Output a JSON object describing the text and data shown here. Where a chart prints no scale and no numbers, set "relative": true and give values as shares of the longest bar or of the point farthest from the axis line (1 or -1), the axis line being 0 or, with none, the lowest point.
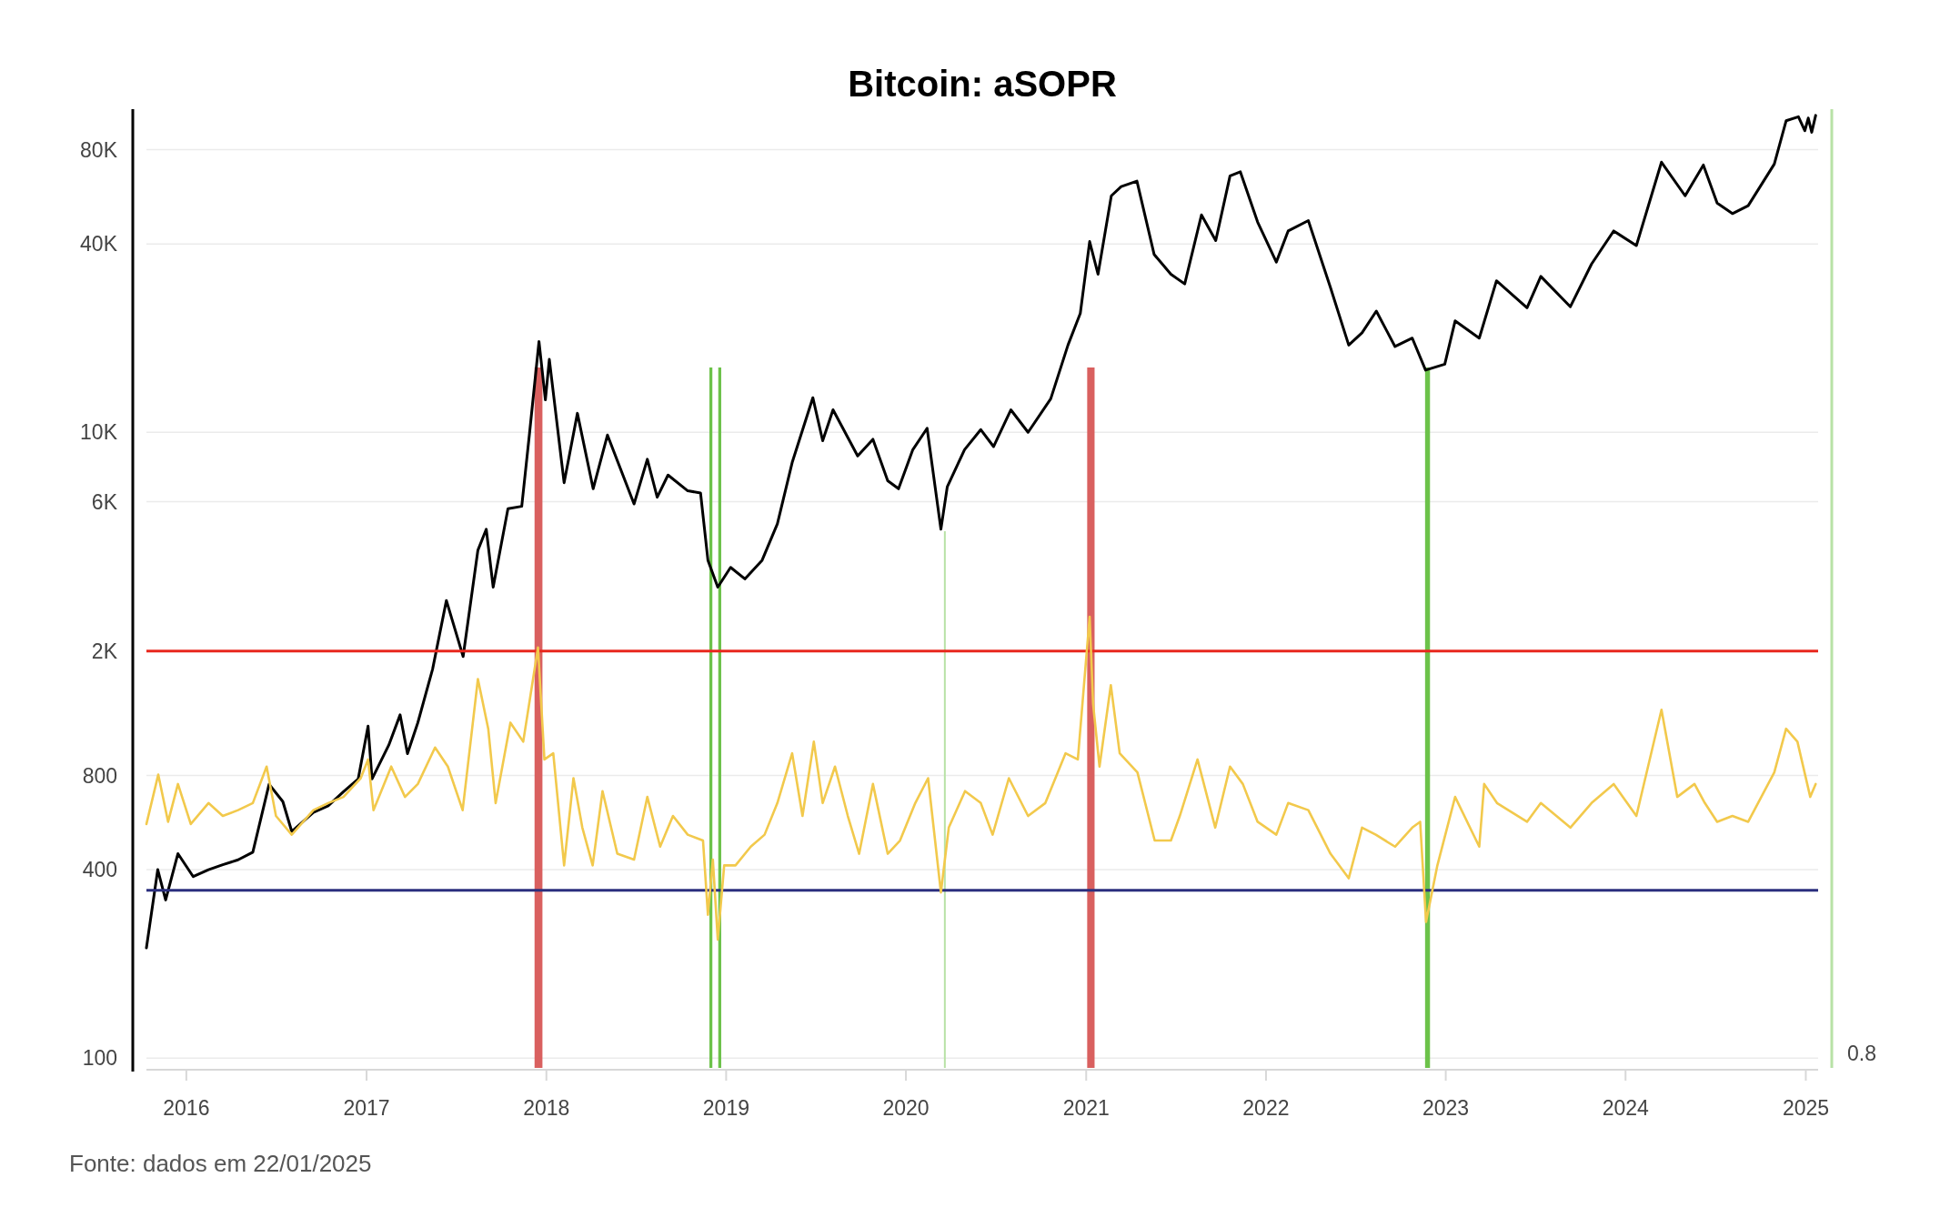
{
  "chart_data": [
    {
      "type": "line",
      "title": "Bitcoin: aSOPR",
      "annotations": [
        "Fonte: dados em 22/01/2025"
      ],
      "log": "y",
      "grid": "y",
      "xlim": [
        "2015-10-12",
        "2025-01-26"
      ],
      "xticks": [
        {
          "value": "2016-01-01",
          "label": "2016"
        },
        {
          "value": "2017-01-01",
          "label": "2017"
        },
        {
          "value": "2018-01-01",
          "label": "2018"
        },
        {
          "value": "2019-01-01",
          "label": "2019"
        },
        {
          "value": "2020-01-01",
          "label": "2020"
        },
        {
          "value": "2021-01-01",
          "label": "2021"
        },
        {
          "value": "2022-01-01",
          "label": "2022"
        },
        {
          "value": "2023-01-01",
          "label": "2023"
        },
        {
          "value": "2024-01-01",
          "label": "2024"
        },
        {
          "value": "2025-01-01",
          "label": "2025"
        }
      ],
      "ylim": [
        93,
        105000
      ],
      "yticks": [
        100,
        400,
        800,
        {
          "value": 2000,
          "label": "2K"
        },
        {
          "value": 6000,
          "label": "6K"
        },
        {
          "value": 10000,
          "label": "10K"
        },
        {
          "value": 40000,
          "label": "40K"
        },
        {
          "value": 80000,
          "label": "80K"
        }
      ],
      "ref_lines": [
        {
          "axis": "x",
          "value": "2020-03-20",
          "color": "#b8e2a6"
        }
      ],
      "bands": [
        {
          "axis": "x",
          "from": "2017-12-08",
          "to": "2017-12-24",
          "color": "#d9605f"
        },
        {
          "axis": "x",
          "from": "2018-11-28",
          "to": "2018-12-04",
          "color": "#6cc24a"
        },
        {
          "axis": "x",
          "from": "2018-12-16",
          "to": "2018-12-22",
          "color": "#6cc24a"
        },
        {
          "axis": "x",
          "from": "2021-01-03",
          "to": "2021-01-18",
          "color": "#d9605f"
        },
        {
          "axis": "x",
          "from": "2022-11-20",
          "to": "2022-11-30",
          "color": "#6cc24a"
        }
      ],
      "series": [
        {
          "color": "#000000",
          "x": [
            "2015-10-12",
            "2015-11-04",
            "2015-11-20",
            "2015-12-15",
            "2016-01-15",
            "2016-02-15",
            "2016-03-15",
            "2016-04-15",
            "2016-05-15",
            "2016-06-17",
            "2016-07-15",
            "2016-08-02",
            "2016-09-15",
            "2016-10-15",
            "2016-11-15",
            "2016-12-15",
            "2017-01-04",
            "2017-01-12",
            "2017-02-15",
            "2017-03-10",
            "2017-03-25",
            "2017-04-15",
            "2017-05-15",
            "2017-06-12",
            "2017-07-16",
            "2017-08-15",
            "2017-09-01",
            "2017-09-15",
            "2017-10-15",
            "2017-11-12",
            "2017-11-28",
            "2017-12-17",
            "2017-12-30",
            "2018-01-07",
            "2018-02-06",
            "2018-03-05",
            "2018-04-06",
            "2018-05-05",
            "2018-06-28",
            "2018-07-25",
            "2018-08-14",
            "2018-09-05",
            "2018-10-15",
            "2018-11-10",
            "2018-11-25",
            "2018-12-15",
            "2019-01-10",
            "2019-02-08",
            "2019-03-15",
            "2019-04-15",
            "2019-05-15",
            "2019-06-26",
            "2019-07-16",
            "2019-08-06",
            "2019-09-25",
            "2019-10-26",
            "2019-11-25",
            "2019-12-17",
            "2020-01-15",
            "2020-02-13",
            "2020-03-12",
            "2020-03-25",
            "2020-04-29",
            "2020-06-01",
            "2020-06-27",
            "2020-08-01",
            "2020-09-05",
            "2020-10-21",
            "2020-11-25",
            "2020-12-20",
            "2021-01-08",
            "2021-01-25",
            "2021-02-21",
            "2021-03-13",
            "2021-04-14",
            "2021-05-19",
            "2021-06-22",
            "2021-07-20",
            "2021-08-23",
            "2021-09-21",
            "2021-10-20",
            "2021-11-10",
            "2021-12-15",
            "2022-01-22",
            "2022-02-15",
            "2022-03-28",
            "2022-05-12",
            "2022-06-18",
            "2022-07-15",
            "2022-08-13",
            "2022-09-20",
            "2022-10-25",
            "2022-11-21",
            "2022-12-30",
            "2023-01-20",
            "2023-03-10",
            "2023-04-14",
            "2023-06-15",
            "2023-07-13",
            "2023-09-11",
            "2023-10-24",
            "2023-12-08",
            "2024-01-23",
            "2024-03-14",
            "2024-05-01",
            "2024-06-07",
            "2024-07-05",
            "2024-08-05",
            "2024-09-06",
            "2024-10-29",
            "2024-11-22",
            "2024-12-17",
            "2024-12-30",
            "2025-01-06",
            "2025-01-13",
            "2025-01-21"
          ],
          "values": [
            225,
            400,
            320,
            450,
            380,
            400,
            415,
            430,
            455,
            750,
            660,
            530,
            610,
            640,
            710,
            780,
            1150,
            780,
            1000,
            1250,
            940,
            1180,
            1750,
            2900,
            1920,
            4200,
            4900,
            3200,
            5700,
            5800,
            10000,
            19500,
            12700,
            17100,
            6900,
            11500,
            6600,
            9800,
            5900,
            8200,
            6200,
            7300,
            6500,
            6400,
            3900,
            3200,
            3700,
            3400,
            3900,
            5100,
            8000,
            12900,
            9400,
            11800,
            8400,
            9500,
            7000,
            6600,
            8800,
            10300,
            4900,
            6700,
            8800,
            10200,
            9000,
            11800,
            10000,
            12800,
            19000,
            24000,
            40700,
            32000,
            57000,
            61000,
            63500,
            37000,
            32000,
            29800,
            49500,
            41000,
            66000,
            68000,
            47000,
            35000,
            44000,
            47500,
            29000,
            19000,
            20800,
            24400,
            18800,
            20000,
            15800,
            16500,
            22700,
            20000,
            30500,
            25000,
            31500,
            25200,
            34500,
            44000,
            39500,
            73000,
            57000,
            71500,
            54000,
            50000,
            53000,
            72000,
            99000,
            102000,
            92000,
            101000,
            91000,
            103000
          ]
        }
      ]
    },
    {
      "type": "line",
      "relative": true,
      "annotations": [
        "0.8"
      ],
      "xlim": [
        "2015-10-12",
        "2025-01-26"
      ],
      "ref_lines": [
        {
          "axis": "y",
          "value": 0.894,
          "color": "#e8281e"
        },
        {
          "axis": "y",
          "value": 0.153,
          "color": "#2b2f7e"
        }
      ],
      "series": [
        {
          "color": "#f2c94c",
          "x": [
            "2015-10-12",
            "2015-11-05",
            "2015-11-25",
            "2015-12-15",
            "2016-01-10",
            "2016-02-15",
            "2016-03-15",
            "2016-04-15",
            "2016-05-15",
            "2016-06-12",
            "2016-07-01",
            "2016-08-02",
            "2016-09-15",
            "2016-10-15",
            "2016-11-15",
            "2016-12-20",
            "2017-01-04",
            "2017-01-15",
            "2017-02-20",
            "2017-03-20",
            "2017-04-15",
            "2017-05-20",
            "2017-06-15",
            "2017-07-15",
            "2017-08-15",
            "2017-09-05",
            "2017-09-20",
            "2017-10-20",
            "2017-11-15",
            "2017-12-15",
            "2017-12-28",
            "2018-01-15",
            "2018-02-06",
            "2018-02-25",
            "2018-03-15",
            "2018-04-05",
            "2018-04-25",
            "2018-05-25",
            "2018-06-28",
            "2018-07-25",
            "2018-08-20",
            "2018-09-15",
            "2018-10-15",
            "2018-11-15",
            "2018-11-25",
            "2018-12-05",
            "2018-12-15",
            "2018-12-28",
            "2019-01-20",
            "2019-02-20",
            "2019-03-20",
            "2019-04-15",
            "2019-05-15",
            "2019-06-05",
            "2019-06-28",
            "2019-07-16",
            "2019-08-10",
            "2019-09-05",
            "2019-09-28",
            "2019-10-26",
            "2019-11-25",
            "2019-12-20",
            "2020-01-20",
            "2020-02-15",
            "2020-03-12",
            "2020-03-28",
            "2020-04-30",
            "2020-06-01",
            "2020-06-25",
            "2020-07-28",
            "2020-09-05",
            "2020-10-10",
            "2020-11-20",
            "2020-12-15",
            "2021-01-08",
            "2021-01-15",
            "2021-01-28",
            "2021-02-20",
            "2021-03-10",
            "2021-04-15",
            "2021-05-20",
            "2021-06-22",
            "2021-07-10",
            "2021-08-15",
            "2021-09-20",
            "2021-10-20",
            "2021-11-15",
            "2021-12-15",
            "2022-01-22",
            "2022-02-15",
            "2022-03-28",
            "2022-05-12",
            "2022-06-18",
            "2022-07-15",
            "2022-08-12",
            "2022-09-20",
            "2022-10-25",
            "2022-11-10",
            "2022-11-22",
            "2022-12-15",
            "2023-01-20",
            "2023-03-10",
            "2023-03-20",
            "2023-04-15",
            "2023-06-15",
            "2023-07-13",
            "2023-09-11",
            "2023-10-24",
            "2023-12-08",
            "2024-01-23",
            "2024-03-14",
            "2024-04-15",
            "2024-05-20",
            "2024-06-10",
            "2024-07-05",
            "2024-08-05",
            "2024-09-06",
            "2024-10-29",
            "2024-11-22",
            "2024-12-15",
            "2025-01-10",
            "2025-01-21"
          ],
          "values": [
            0.358,
            0.511,
            0.365,
            0.482,
            0.358,
            0.423,
            0.383,
            0.401,
            0.423,
            0.536,
            0.383,
            0.325,
            0.401,
            0.423,
            0.442,
            0.5,
            0.558,
            0.401,
            0.536,
            0.442,
            0.482,
            0.595,
            0.536,
            0.401,
            0.807,
            0.653,
            0.423,
            0.672,
            0.613,
            0.905,
            0.558,
            0.577,
            0.23,
            0.5,
            0.347,
            0.23,
            0.46,
            0.266,
            0.248,
            0.442,
            0.288,
            0.383,
            0.325,
            0.307,
            0.077,
            0.248,
            0,
            0.23,
            0.23,
            0.288,
            0.325,
            0.423,
            0.577,
            0.383,
            0.613,
            0.423,
            0.536,
            0.383,
            0.266,
            0.482,
            0.266,
            0.307,
            0.423,
            0.5,
            0.146,
            0.347,
            0.46,
            0.423,
            0.325,
            0.5,
            0.383,
            0.423,
            0.577,
            0.558,
            1,
            0.73,
            0.536,
            0.788,
            0.577,
            0.518,
            0.307,
            0.307,
            0.383,
            0.558,
            0.347,
            0.536,
            0.482,
            0.365,
            0.325,
            0.423,
            0.401,
            0.266,
            0.19,
            0.347,
            0.325,
            0.288,
            0.347,
            0.365,
            0.055,
            0.23,
            0.442,
            0.288,
            0.482,
            0.423,
            0.365,
            0.423,
            0.347,
            0.423,
            0.482,
            0.383,
            0.712,
            0.442,
            0.482,
            0.423,
            0.365,
            0.383,
            0.365,
            0.518,
            0.653,
            0.613,
            0.442,
            0.482
          ]
        }
      ]
    }
  ]
}
